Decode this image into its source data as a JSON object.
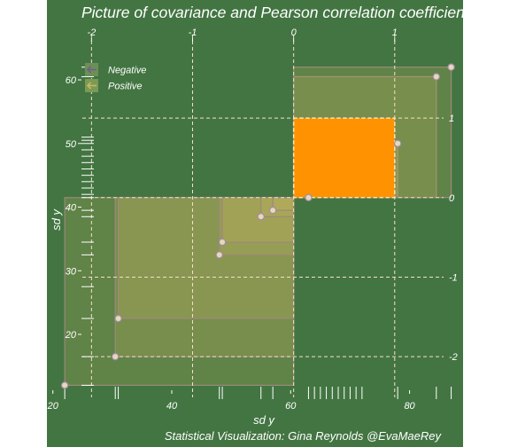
{
  "chart_data": {
    "type": "scatter",
    "title": "Picture of covariance and Pearson correlation coefficient",
    "xlabel": "sd y",
    "ylabel": "sd y",
    "caption": "Statistical Visualization: Gina Reynolds @EvaMaeRey",
    "xlim": [
      19,
      89
    ],
    "ylim": [
      11.5,
      66
    ],
    "x_ticks": [
      20,
      40,
      60,
      80
    ],
    "y_ticks": [
      20,
      30,
      40,
      50,
      60
    ],
    "center": {
      "x": 60.5,
      "y": 41.5
    },
    "sd": {
      "x": 17,
      "y": 12.5
    },
    "z_ticks": [
      -2,
      -1,
      0,
      1
    ],
    "z_tick_labels": [
      "-2",
      "-1",
      "0",
      "1"
    ],
    "legend": {
      "position": "top-left",
      "entries": [
        {
          "label": "Negative",
          "color": "#7a5a8c"
        },
        {
          "label": "Positive",
          "color": "#c8b860"
        }
      ]
    },
    "unit_square_color": "#ff9200",
    "background": "#437542",
    "points": [
      {
        "x": 22,
        "y": 12,
        "sign": "positive"
      },
      {
        "x": 30.5,
        "y": 16.5,
        "sign": "positive"
      },
      {
        "x": 31,
        "y": 22.5,
        "sign": "positive"
      },
      {
        "x": 48,
        "y": 32.5,
        "sign": "positive"
      },
      {
        "x": 48.5,
        "y": 34.5,
        "sign": "positive"
      },
      {
        "x": 55,
        "y": 38.5,
        "sign": "positive"
      },
      {
        "x": 57,
        "y": 39.5,
        "sign": "positive"
      },
      {
        "x": 63,
        "y": 41.5,
        "sign": "positive"
      },
      {
        "x": 78,
        "y": 50,
        "sign": "positive"
      },
      {
        "x": 84.5,
        "y": 60.5,
        "sign": "positive"
      },
      {
        "x": 87,
        "y": 62,
        "sign": "positive"
      }
    ],
    "rug_x": [
      22,
      30.5,
      31,
      48,
      48.5,
      55,
      57,
      63,
      64,
      65,
      66,
      67,
      68,
      69,
      70,
      71,
      72,
      78,
      84.5,
      87
    ],
    "rug_y": [
      12,
      16.5,
      22.5,
      27.5,
      32.5,
      34.5,
      38.5,
      39.5,
      41.5,
      42,
      43,
      44,
      45,
      46,
      47,
      48,
      49,
      50,
      50.5,
      51,
      60.5,
      62
    ]
  }
}
